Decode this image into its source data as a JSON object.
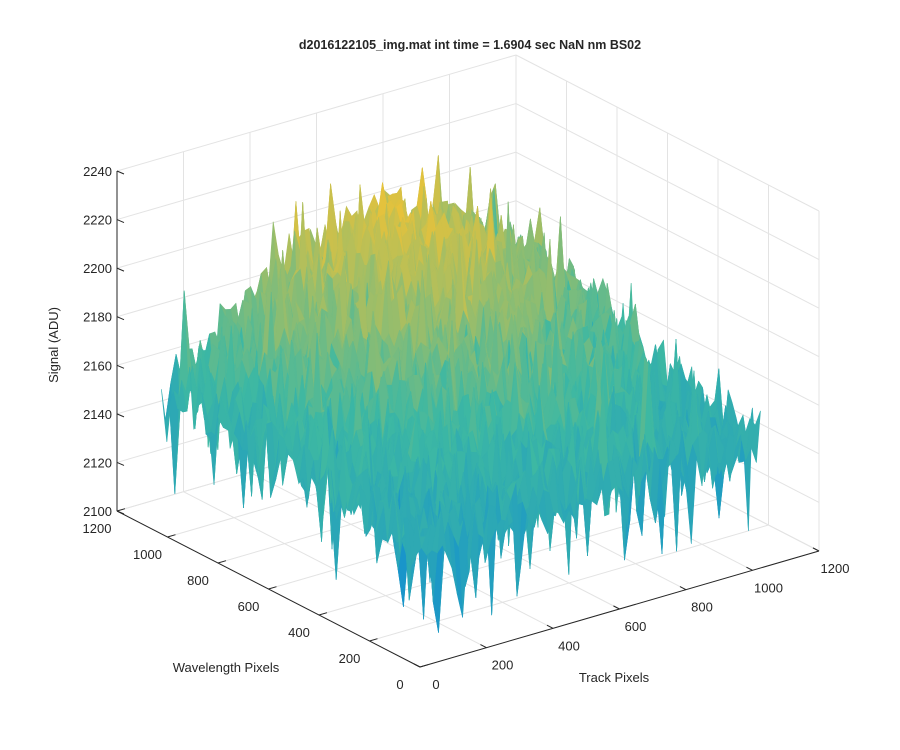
{
  "chart_data": {
    "type": "surface",
    "title": "d2016122105_img.mat int time = 1.6904 sec  NaN nm BS02",
    "xlabel": "Track Pixels",
    "ylabel": "Wavelength Pixels",
    "zlabel": "Signal (ADU)",
    "xlim": [
      0,
      1200
    ],
    "ylim": [
      0,
      1200
    ],
    "zlim": [
      2100,
      2240
    ],
    "xticks": [
      "0",
      "200",
      "400",
      "600",
      "800",
      "1000",
      "1200"
    ],
    "yticks": [
      "0",
      "200",
      "400",
      "600",
      "800",
      "1000",
      "1200"
    ],
    "zticks": [
      "2100",
      "2120",
      "2140",
      "2160",
      "2180",
      "2200",
      "2220",
      "2240"
    ],
    "grid": true,
    "colormap": "parula",
    "surface": {
      "x_range": [
        0,
        1024
      ],
      "y_range": [
        0,
        1024
      ],
      "z_baseline": 2148,
      "z_peak": 2205,
      "z_min_observed": 2100,
      "z_max_observed": 2240,
      "noise_amplitude": 14,
      "description_levels": "dome-shaped signal, highest near track 600 / wavelength 900, about 2145-2150 at the edges"
    },
    "colors": {
      "low": "#0d8ad6",
      "mid": "#3db8a3",
      "high": "#e8c23a",
      "axis": "#262626",
      "grid": "#e3e3e3"
    }
  }
}
